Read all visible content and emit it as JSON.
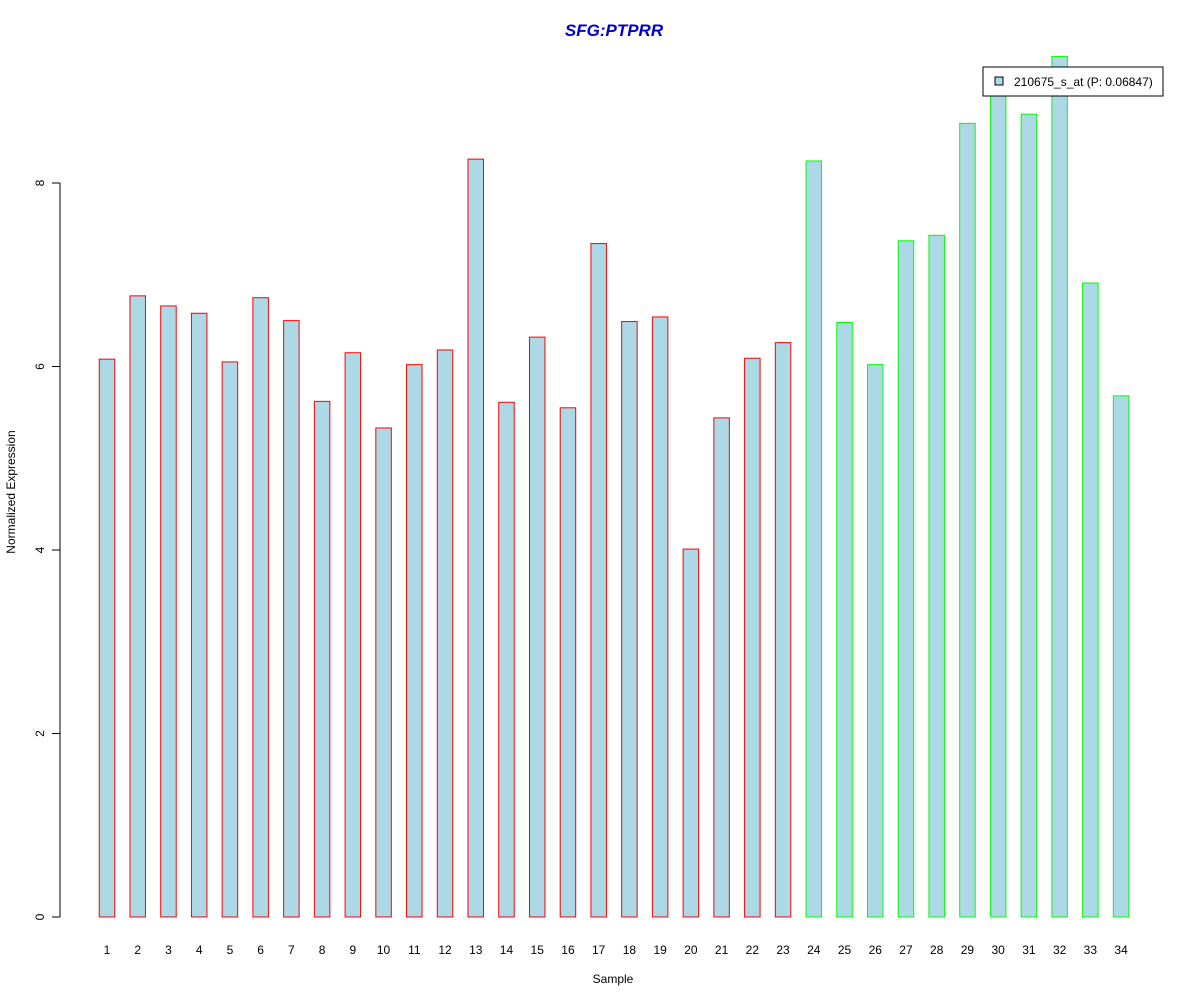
{
  "chart_data": {
    "type": "bar",
    "title": "SFG:PTPRR",
    "xlabel": "Sample",
    "ylabel": "Normalized Expression",
    "categories": [
      "1",
      "2",
      "3",
      "4",
      "5",
      "6",
      "7",
      "8",
      "9",
      "10",
      "11",
      "12",
      "13",
      "14",
      "15",
      "16",
      "17",
      "18",
      "19",
      "20",
      "21",
      "22",
      "23",
      "24",
      "25",
      "26",
      "27",
      "28",
      "29",
      "30",
      "31",
      "32",
      "33",
      "34"
    ],
    "series": [
      {
        "name": "210675_s_at (P: 0.06847)",
        "values": [
          6.08,
          6.77,
          6.66,
          6.58,
          6.05,
          6.75,
          6.5,
          5.62,
          6.15,
          5.33,
          6.02,
          6.18,
          8.26,
          5.61,
          6.32,
          5.55,
          7.34,
          6.49,
          6.54,
          4.01,
          5.44,
          6.09,
          6.26,
          8.24,
          6.48,
          6.02,
          7.37,
          7.43,
          8.65,
          9.07,
          8.75,
          9.38,
          6.91,
          5.68
        ]
      }
    ],
    "groups": [
      1,
      1,
      1,
      1,
      1,
      1,
      1,
      1,
      1,
      1,
      1,
      1,
      1,
      1,
      1,
      1,
      1,
      1,
      1,
      1,
      1,
      1,
      1,
      2,
      2,
      2,
      2,
      2,
      2,
      2,
      2,
      2,
      2,
      2
    ],
    "yticks": [
      0,
      2,
      4,
      6,
      8
    ],
    "ylim": [
      0,
      9.4
    ],
    "grid": false,
    "legend_position": "top-right",
    "colors": {
      "bar_fill": "#add8e6",
      "group1_border": "#ff0000",
      "group2_border": "#00ff00",
      "title": "#0000cd"
    }
  }
}
